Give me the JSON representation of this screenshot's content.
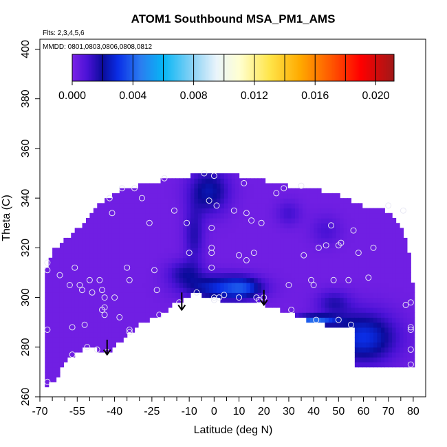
{
  "chart_data": {
    "type": "heatmap",
    "title": "ATOM1 Southbound MSA_PM1_AMS",
    "subtitle_flights": "Flts: 2,3,4,5,6",
    "subtitle_dates": "MMDD: 0801,0803,0806,0808,0812",
    "xlabel": "Latitude (deg N)",
    "ylabel": "Theta (C)",
    "xlim": [
      -70,
      85
    ],
    "ylim": [
      260,
      404
    ],
    "x_ticks_labeled": [
      -70,
      -55,
      -40,
      -25,
      -10,
      0,
      10,
      20,
      30,
      40,
      50,
      60,
      70,
      80
    ],
    "x_ticks_minor": [
      -65,
      -60,
      -50,
      -45,
      -35,
      -30,
      -20,
      -15,
      -5,
      5,
      15,
      25,
      35,
      45,
      55,
      65,
      75
    ],
    "y_ticks": [
      260,
      280,
      300,
      320,
      340,
      360,
      380,
      400
    ],
    "colorbar": {
      "range": [
        0,
        0.0212
      ],
      "tick_labels": [
        "0.000",
        "0.004",
        "0.008",
        "0.012",
        "0.016",
        "0.020"
      ],
      "tick_values": [
        0,
        0.004,
        0.008,
        0.012,
        0.016,
        0.02
      ],
      "divisions": [
        0,
        0.002,
        0.004,
        0.006,
        0.008,
        0.01,
        0.012,
        0.014,
        0.016,
        0.018,
        0.02
      ],
      "stops": [
        {
          "v": 0.0,
          "color": "#7a22e6"
        },
        {
          "v": 0.001,
          "color": "#4a12d6"
        },
        {
          "v": 0.002,
          "color": "#0b0b9a"
        },
        {
          "v": 0.003,
          "color": "#0a2ee6"
        },
        {
          "v": 0.0045,
          "color": "#2b7cf0"
        },
        {
          "v": 0.006,
          "color": "#06b6f5"
        },
        {
          "v": 0.008,
          "color": "#8fd3f5"
        },
        {
          "v": 0.0095,
          "color": "#e9f4fb"
        },
        {
          "v": 0.011,
          "color": "#ffffd2"
        },
        {
          "v": 0.013,
          "color": "#ffe54a"
        },
        {
          "v": 0.015,
          "color": "#ffaa00"
        },
        {
          "v": 0.017,
          "color": "#ff5a00"
        },
        {
          "v": 0.019,
          "color": "#ff0000"
        },
        {
          "v": 0.0212,
          "color": "#a01818"
        }
      ]
    },
    "field": {
      "background_value": 0.0002,
      "upper_boundary": [
        [
          -68,
          311
        ],
        [
          -66,
          316
        ],
        [
          -64,
          320
        ],
        [
          -60,
          323
        ],
        [
          -57,
          326
        ],
        [
          -52,
          330
        ],
        [
          -48,
          336
        ],
        [
          -44,
          339
        ],
        [
          -40,
          342
        ],
        [
          -35,
          344
        ],
        [
          -25,
          346
        ],
        [
          -18,
          348
        ],
        [
          -10,
          349
        ],
        [
          0,
          350
        ],
        [
          10,
          349
        ],
        [
          20,
          347
        ],
        [
          30,
          345
        ],
        [
          40,
          344
        ],
        [
          50,
          341
        ],
        [
          55,
          339
        ],
        [
          60,
          337
        ],
        [
          66,
          336
        ],
        [
          70,
          334
        ],
        [
          73,
          330
        ],
        [
          76,
          327
        ],
        [
          78,
          320
        ],
        [
          79,
          310
        ],
        [
          80,
          305
        ],
        [
          80,
          295
        ],
        [
          80,
          272
        ]
      ],
      "lower_boundary": [
        [
          80,
          272
        ],
        [
          70,
          272
        ],
        [
          56,
          272
        ],
        [
          56,
          287
        ],
        [
          50,
          288
        ],
        [
          40,
          290
        ],
        [
          30,
          294
        ],
        [
          20,
          297
        ],
        [
          10,
          299
        ],
        [
          2,
          299
        ],
        [
          -8,
          302
        ],
        [
          -15,
          298
        ],
        [
          -22,
          293
        ],
        [
          -30,
          289
        ],
        [
          -37,
          283
        ],
        [
          -43,
          277
        ],
        [
          -45,
          278
        ],
        [
          -50,
          280
        ],
        [
          -55,
          278
        ],
        [
          -58,
          276
        ],
        [
          -64,
          267
        ],
        [
          -68,
          264
        ]
      ],
      "blobs": [
        {
          "lat": -2,
          "theta": 343,
          "rlat": 8,
          "rtheta": 9,
          "value": 0.0021
        },
        {
          "lat": -8,
          "theta": 325,
          "rlat": 4,
          "rtheta": 12,
          "value": 0.0014
        },
        {
          "lat": -12,
          "theta": 310,
          "rlat": 7,
          "rtheta": 5,
          "value": 0.0014
        },
        {
          "lat": 3,
          "theta": 304,
          "rlat": 14,
          "rtheta": 5,
          "value": 0.0027
        },
        {
          "lat": 12,
          "theta": 304,
          "rlat": 7,
          "rtheta": 4,
          "value": 0.0018
        },
        {
          "lat": 60,
          "theta": 284,
          "rlat": 13,
          "rtheta": 10,
          "value": 0.0028
        },
        {
          "lat": 48,
          "theta": 298,
          "rlat": 7,
          "rtheta": 5,
          "value": 0.0013
        },
        {
          "lat": 40,
          "theta": 291,
          "rlat": 9,
          "rtheta": 2,
          "value": 0.0038
        },
        {
          "lat": 30,
          "theta": 334,
          "rlat": 5,
          "rtheta": 5,
          "value": 0.0009
        },
        {
          "lat": 45,
          "theta": 327,
          "rlat": 6,
          "rtheta": 6,
          "value": 0.0008
        }
      ]
    },
    "observations": [
      [
        -67,
        314
      ],
      [
        -67,
        311
      ],
      [
        -67,
        287
      ],
      [
        -67,
        266
      ],
      [
        -62,
        309
      ],
      [
        -58,
        305
      ],
      [
        -57,
        288
      ],
      [
        -57,
        277
      ],
      [
        -56,
        312
      ],
      [
        -54,
        305
      ],
      [
        -53,
        303
      ],
      [
        -52,
        289
      ],
      [
        -51,
        280
      ],
      [
        -50,
        307
      ],
      [
        -49,
        302
      ],
      [
        -47,
        279
      ],
      [
        -46,
        307
      ],
      [
        -45,
        303
      ],
      [
        -45,
        295
      ],
      [
        -44,
        300
      ],
      [
        -44,
        296
      ],
      [
        -44,
        293
      ],
      [
        -43,
        278
      ],
      [
        -42,
        340
      ],
      [
        -41,
        334
      ],
      [
        -40,
        300
      ],
      [
        -38,
        292
      ],
      [
        -37,
        344
      ],
      [
        -35,
        312
      ],
      [
        -34,
        307
      ],
      [
        -34,
        287
      ],
      [
        -34,
        286
      ],
      [
        -32,
        344
      ],
      [
        -29,
        340
      ],
      [
        -26,
        330
      ],
      [
        -24,
        311
      ],
      [
        -23,
        303
      ],
      [
        -22,
        293
      ],
      [
        -20,
        348
      ],
      [
        -16,
        335
      ],
      [
        -14,
        298
      ],
      [
        -11,
        330
      ],
      [
        -10,
        318
      ],
      [
        -7,
        302
      ],
      [
        -4,
        350
      ],
      [
        -2,
        339
      ],
      [
        -1,
        328
      ],
      [
        -1,
        320
      ],
      [
        -1,
        318
      ],
      [
        -1,
        312
      ],
      [
        0,
        349
      ],
      [
        0,
        300
      ],
      [
        0,
        299
      ],
      [
        1,
        337
      ],
      [
        2,
        300
      ],
      [
        4,
        301
      ],
      [
        8,
        335
      ],
      [
        10,
        317
      ],
      [
        10,
        300
      ],
      [
        12,
        346
      ],
      [
        13,
        334
      ],
      [
        13,
        315
      ],
      [
        15,
        331
      ],
      [
        16,
        318
      ],
      [
        17,
        300
      ],
      [
        18,
        299
      ],
      [
        19,
        330
      ],
      [
        20,
        300
      ],
      [
        25,
        342
      ],
      [
        28,
        344
      ],
      [
        30,
        305
      ],
      [
        31,
        295
      ],
      [
        35,
        345
      ],
      [
        36,
        317
      ],
      [
        39,
        307
      ],
      [
        40,
        305
      ],
      [
        41,
        291
      ],
      [
        42,
        320
      ],
      [
        45,
        321
      ],
      [
        47,
        329
      ],
      [
        48,
        307
      ],
      [
        50,
        291
      ],
      [
        50,
        321
      ],
      [
        51,
        322
      ],
      [
        54,
        307
      ],
      [
        55,
        289
      ],
      [
        56,
        327
      ],
      [
        58,
        318
      ],
      [
        62,
        308
      ],
      [
        64,
        320
      ],
      [
        70,
        337
      ],
      [
        76,
        335
      ],
      [
        77,
        297
      ],
      [
        79,
        298
      ],
      [
        79,
        288
      ],
      [
        79,
        287
      ],
      [
        79,
        279
      ],
      [
        79,
        273
      ]
    ],
    "arrows": [
      {
        "lat": -43,
        "theta_top": 283,
        "theta_bottom": 277
      },
      {
        "lat": -13,
        "theta_top": 302,
        "theta_bottom": 295
      },
      {
        "lat": 20,
        "theta_top": 303,
        "theta_bottom": 297
      }
    ],
    "legend": "none",
    "grid": false
  }
}
